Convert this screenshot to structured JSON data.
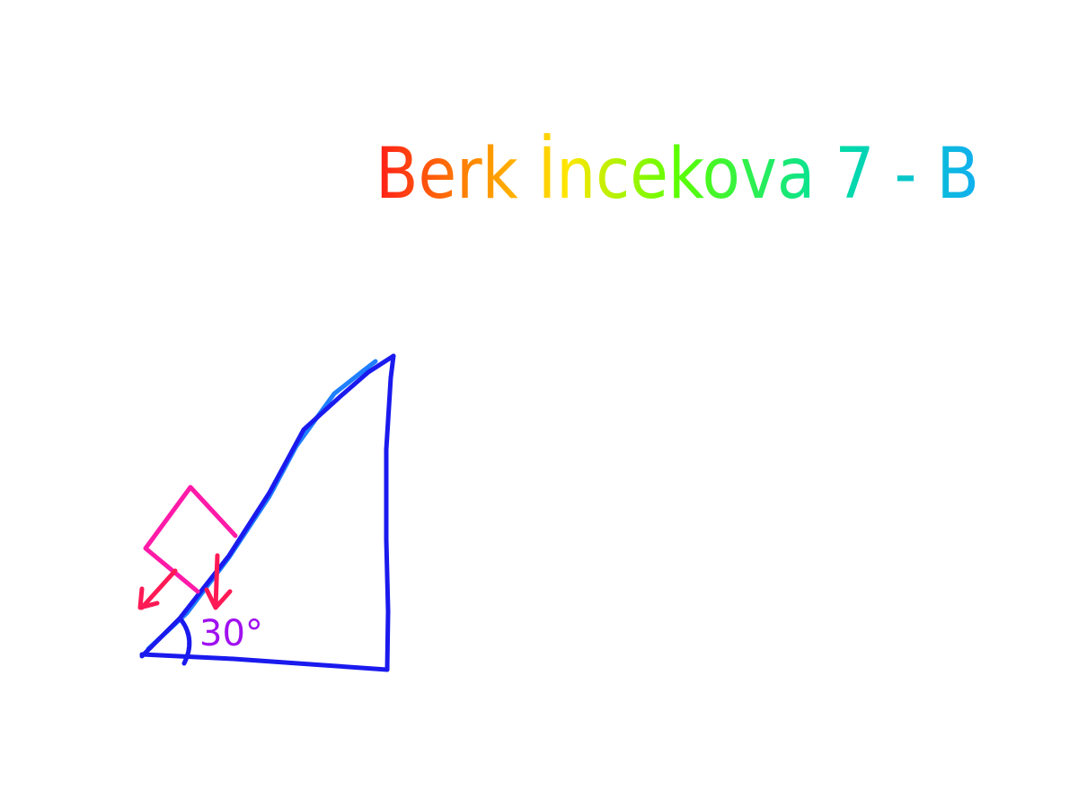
{
  "title": {
    "text": "Berk İncekova 7 - B",
    "colors": [
      "#ff1a1a",
      "#ff8c00",
      "#ffe600",
      "#5cff00",
      "#00e0a0",
      "#10aef0"
    ]
  },
  "diagram": {
    "type": "inclined-plane",
    "incline_color": "#1a1aee",
    "incline_highlight_color": "#1f7fff",
    "block_color": "#ff1aa8",
    "force_arrow_color": "#ff1a55",
    "angle_color": "#a010f0",
    "angle_label": "30°"
  }
}
